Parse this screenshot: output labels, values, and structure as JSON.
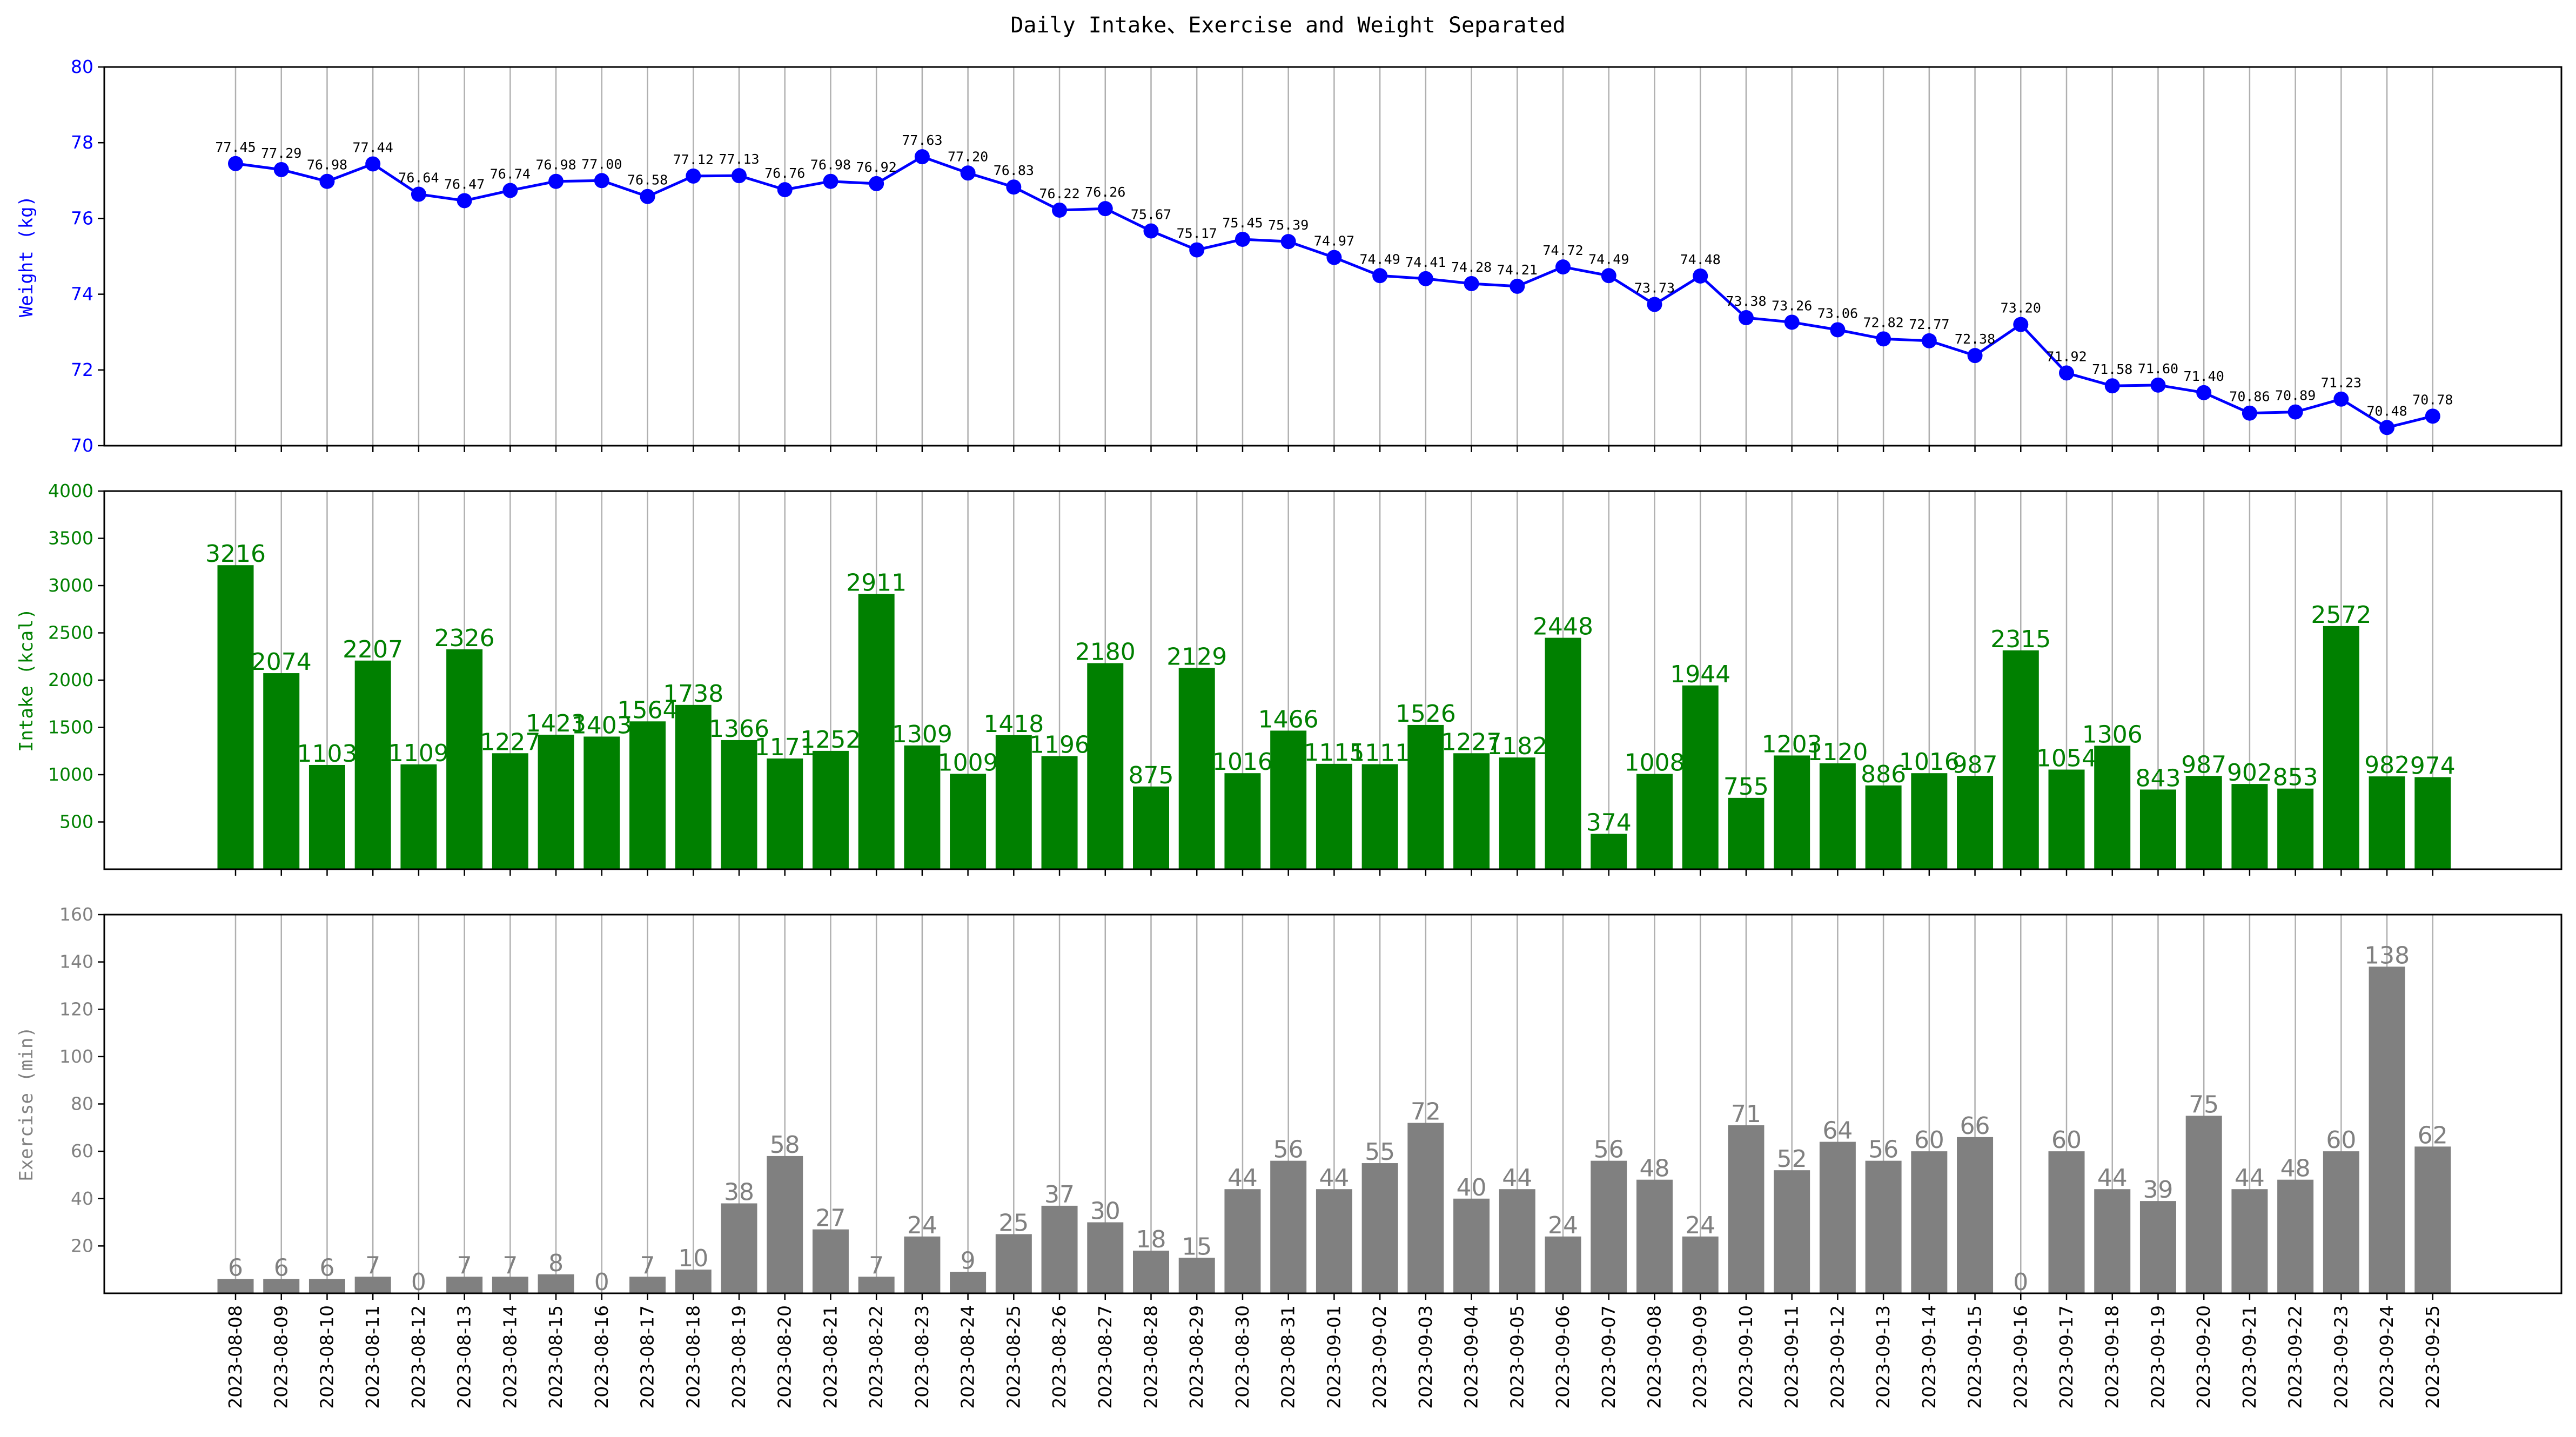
{
  "title": "Daily Intake、Exercise and Weight Separated",
  "colors": {
    "weight": "#0000ff",
    "intake": "#008000",
    "exercise": "#808080",
    "grid": "#b0b0b0",
    "frame": "#000000"
  },
  "chart_data": [
    {
      "type": "line",
      "ylabel": "Weight (kg)",
      "ylim": [
        70,
        80
      ],
      "yticks": [
        70,
        72,
        74,
        76,
        78,
        80
      ],
      "grid": "vertical",
      "marker": "circle",
      "categories": [
        "2023-08-08",
        "2023-08-09",
        "2023-08-10",
        "2023-08-11",
        "2023-08-12",
        "2023-08-13",
        "2023-08-14",
        "2023-08-15",
        "2023-08-16",
        "2023-08-17",
        "2023-08-18",
        "2023-08-19",
        "2023-08-20",
        "2023-08-21",
        "2023-08-22",
        "2023-08-23",
        "2023-08-24",
        "2023-08-25",
        "2023-08-26",
        "2023-08-27",
        "2023-08-28",
        "2023-08-29",
        "2023-08-30",
        "2023-08-31",
        "2023-09-01",
        "2023-09-02",
        "2023-09-03",
        "2023-09-04",
        "2023-09-05",
        "2023-09-06",
        "2023-09-07",
        "2023-09-08",
        "2023-09-09",
        "2023-09-10",
        "2023-09-11",
        "2023-09-12",
        "2023-09-13",
        "2023-09-14",
        "2023-09-15",
        "2023-09-16",
        "2023-09-17",
        "2023-09-18",
        "2023-09-19",
        "2023-09-20",
        "2023-09-21",
        "2023-09-22",
        "2023-09-23",
        "2023-09-24",
        "2023-09-25"
      ],
      "values": [
        77.45,
        77.29,
        76.98,
        77.44,
        76.64,
        76.47,
        76.74,
        76.98,
        77.0,
        76.58,
        77.12,
        77.13,
        76.76,
        76.98,
        76.92,
        77.63,
        77.2,
        76.83,
        76.22,
        76.26,
        75.67,
        75.17,
        75.45,
        75.39,
        74.97,
        74.49,
        74.41,
        74.28,
        74.21,
        74.72,
        74.49,
        73.73,
        74.48,
        73.38,
        73.26,
        73.06,
        72.82,
        72.77,
        72.38,
        73.2,
        71.92,
        71.58,
        71.6,
        71.4,
        70.86,
        70.89,
        71.23,
        70.48,
        70.78
      ],
      "data_labels": [
        "77.45",
        "77.29",
        "76.98",
        "77.44",
        "76.64",
        "76.47",
        "76.74",
        "76.98",
        "77.00",
        "76.58",
        "77.12",
        "77.13",
        "76.76",
        "76.98",
        "76.92",
        "77.63",
        "77.20",
        "76.83",
        "76.22",
        "76.26",
        "75.67",
        "75.17",
        "75.45",
        "75.39",
        "74.97",
        "74.49",
        "74.41",
        "74.28",
        "74.21",
        "74.72",
        "74.49",
        "73.73",
        "74.48",
        "73.38",
        "73.26",
        "73.06",
        "72.82",
        "72.77",
        "72.38",
        "73.20",
        "71.92",
        "71.58",
        "71.60",
        "71.40",
        "70.86",
        "70.89",
        "71.23",
        "70.48",
        "70.78"
      ]
    },
    {
      "type": "bar",
      "ylabel": "Intake (kcal)",
      "ylim": [
        0,
        4000
      ],
      "yticks": [
        500,
        1000,
        1500,
        2000,
        2500,
        3000,
        3500,
        4000
      ],
      "grid": "vertical",
      "values": [
        3216,
        2074,
        1103,
        2207,
        1109,
        2326,
        1227,
        1423,
        1403,
        1564,
        1738,
        1366,
        1171,
        1252,
        2911,
        1309,
        1009,
        1418,
        1196,
        2180,
        875,
        2129,
        1016,
        1466,
        1115,
        1111,
        1526,
        1227,
        1182,
        2448,
        374,
        1008,
        1944,
        755,
        1203,
        1120,
        886,
        1016,
        987,
        2315,
        1054,
        1306,
        843,
        987,
        902,
        853,
        2572,
        982,
        974
      ],
      "data_labels": [
        "3216",
        "2074",
        "1103",
        "2207",
        "1109",
        "2326",
        "1227",
        "1423",
        "1403",
        "1564",
        "1738",
        "1366",
        "1171",
        "1252",
        "2911",
        "1309",
        "1009",
        "1418",
        "1196",
        "2180",
        "875",
        "2129",
        "1016",
        "1466",
        "1115",
        "1111",
        "1526",
        "1227",
        "1182",
        "2448",
        "374",
        "1008",
        "1944",
        "755",
        "1203",
        "1120",
        "886",
        "1016",
        "987",
        "2315",
        "1054",
        "1306",
        "843",
        "987",
        "902",
        "853",
        "2572",
        "982",
        "974"
      ]
    },
    {
      "type": "bar",
      "ylabel": "Exercise (min)",
      "ylim": [
        0,
        160
      ],
      "yticks": [
        20,
        40,
        60,
        80,
        100,
        120,
        140,
        160
      ],
      "grid": "vertical",
      "values": [
        6,
        6,
        6,
        7,
        0,
        7,
        7,
        8,
        0,
        7,
        10,
        38,
        58,
        27,
        7,
        24,
        9,
        25,
        37,
        30,
        18,
        15,
        44,
        56,
        44,
        55,
        72,
        40,
        44,
        24,
        56,
        48,
        24,
        71,
        52,
        64,
        56,
        60,
        66,
        0,
        60,
        44,
        39,
        75,
        44,
        48,
        60,
        138,
        62
      ],
      "data_labels": [
        "6",
        "6",
        "6",
        "7",
        "0",
        "7",
        "7",
        "8",
        "0",
        "7",
        "10",
        "38",
        "58",
        "27",
        "7",
        "24",
        "9",
        "25",
        "37",
        "30",
        "18",
        "15",
        "44",
        "56",
        "44",
        "55",
        "72",
        "40",
        "44",
        "24",
        "56",
        "48",
        "24",
        "71",
        "52",
        "64",
        "56",
        "60",
        "66",
        "0",
        "60",
        "44",
        "39",
        "75",
        "44",
        "48",
        "60",
        "138",
        "62"
      ]
    }
  ]
}
